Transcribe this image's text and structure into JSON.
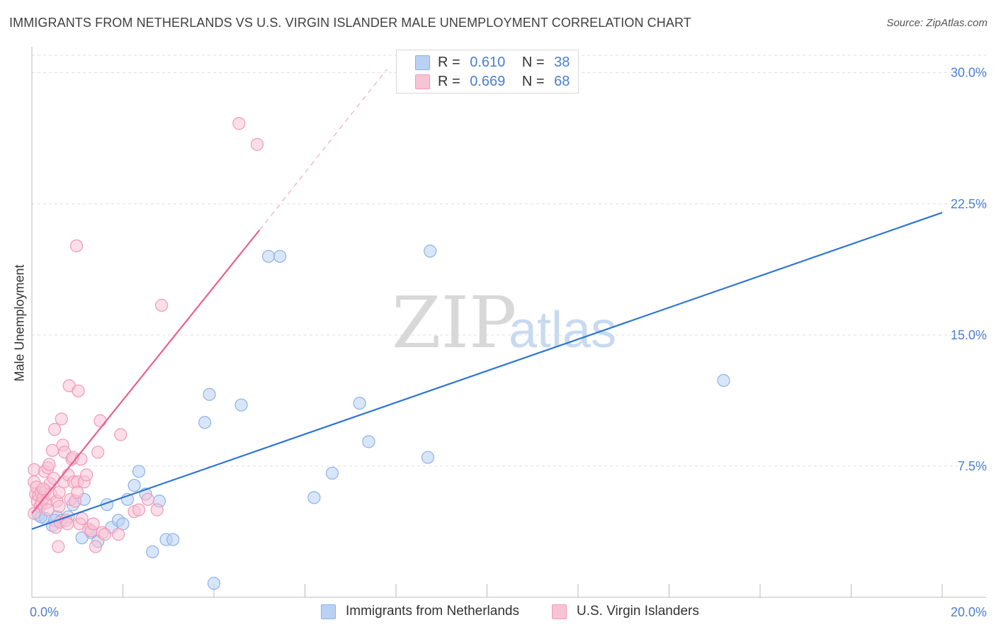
{
  "title": "IMMIGRANTS FROM NETHERLANDS VS U.S. VIRGIN ISLANDER MALE UNEMPLOYMENT CORRELATION CHART",
  "source": "Source: ZipAtlas.com",
  "watermark": {
    "zip": "ZIP",
    "atlas": "atlas"
  },
  "legend": {
    "r_label": "R =",
    "n_label": "N =",
    "series": [
      {
        "r": "0.610",
        "n": "38"
      },
      {
        "r": "0.669",
        "n": "68"
      }
    ]
  },
  "colors": {
    "blue_fill": "#b9d2f4",
    "blue_stroke": "#8bb2e6",
    "blue_line": "#2f75d3",
    "pink_fill": "#f8c3d5",
    "pink_stroke": "#f099b7",
    "pink_line": "#e8608f",
    "tick_text": "#4a7fd1",
    "grid": "#dddddd"
  },
  "chart_data": {
    "type": "scatter",
    "title": "IMMIGRANTS FROM NETHERLANDS VS U.S. VIRGIN ISLANDER MALE UNEMPLOYMENT CORRELATION CHART",
    "xlabel": "",
    "ylabel": "Male Unemployment",
    "xlim": [
      0,
      20
    ],
    "ylim": [
      0,
      31
    ],
    "x_tick_labels": [
      {
        "value": 0,
        "label": "0.0%"
      },
      {
        "value": 20,
        "label": "20.0%"
      }
    ],
    "y_tick_labels": [
      {
        "value": 7.5,
        "label": "7.5%"
      },
      {
        "value": 15,
        "label": "15.0%"
      },
      {
        "value": 22.5,
        "label": "22.5%"
      },
      {
        "value": 30,
        "label": "30.0%"
      }
    ],
    "series": [
      {
        "name": "Immigrants from Netherlands",
        "color": "blue",
        "points": [
          [
            0.15,
            4.7
          ],
          [
            0.3,
            4.5
          ],
          [
            0.45,
            4.1
          ],
          [
            0.55,
            4.6
          ],
          [
            0.65,
            4.4
          ],
          [
            0.9,
            5.3
          ],
          [
            1.15,
            5.6
          ],
          [
            1.3,
            3.7
          ],
          [
            1.1,
            3.4
          ],
          [
            1.45,
            3.2
          ],
          [
            1.65,
            5.3
          ],
          [
            1.75,
            4.0
          ],
          [
            1.9,
            4.4
          ],
          [
            2.0,
            4.2
          ],
          [
            2.1,
            5.6
          ],
          [
            2.25,
            6.4
          ],
          [
            2.35,
            7.2
          ],
          [
            2.5,
            5.9
          ],
          [
            2.65,
            2.6
          ],
          [
            2.8,
            5.5
          ],
          [
            2.95,
            3.3
          ],
          [
            3.1,
            3.3
          ],
          [
            3.8,
            10.0
          ],
          [
            3.9,
            11.6
          ],
          [
            4.0,
            0.8
          ],
          [
            4.6,
            11.0
          ],
          [
            5.2,
            19.5
          ],
          [
            5.45,
            19.5
          ],
          [
            6.2,
            5.7
          ],
          [
            6.6,
            7.1
          ],
          [
            7.2,
            11.1
          ],
          [
            7.4,
            8.9
          ],
          [
            8.7,
            8.0
          ],
          [
            8.75,
            19.8
          ],
          [
            15.2,
            12.4
          ],
          [
            0.2,
            4.6
          ],
          [
            0.5,
            4.4
          ],
          [
            0.8,
            4.6
          ]
        ],
        "trend": {
          "x": [
            0,
            20
          ],
          "y": [
            3.9,
            22.0
          ]
        }
      },
      {
        "name": "U.S. Virgin Islanders",
        "color": "pink",
        "points": [
          [
            0.05,
            7.3
          ],
          [
            0.05,
            6.6
          ],
          [
            0.08,
            5.9
          ],
          [
            0.1,
            6.3
          ],
          [
            0.12,
            5.5
          ],
          [
            0.15,
            5.8
          ],
          [
            0.18,
            5.2
          ],
          [
            0.2,
            6.0
          ],
          [
            0.22,
            5.4
          ],
          [
            0.25,
            5.7
          ],
          [
            0.28,
            7.2
          ],
          [
            0.3,
            6.1
          ],
          [
            0.32,
            5.4
          ],
          [
            0.35,
            7.4
          ],
          [
            0.38,
            7.6
          ],
          [
            0.4,
            6.5
          ],
          [
            0.42,
            5.9
          ],
          [
            0.45,
            8.4
          ],
          [
            0.48,
            6.8
          ],
          [
            0.5,
            9.6
          ],
          [
            0.52,
            4.0
          ],
          [
            0.55,
            5.5
          ],
          [
            0.58,
            2.9
          ],
          [
            0.6,
            6.0
          ],
          [
            0.62,
            4.3
          ],
          [
            0.65,
            10.2
          ],
          [
            0.68,
            8.7
          ],
          [
            0.7,
            6.6
          ],
          [
            0.72,
            8.3
          ],
          [
            0.75,
            4.4
          ],
          [
            0.78,
            4.2
          ],
          [
            0.8,
            7.0
          ],
          [
            0.82,
            12.1
          ],
          [
            0.85,
            5.6
          ],
          [
            0.88,
            7.9
          ],
          [
            0.9,
            8.0
          ],
          [
            0.92,
            6.6
          ],
          [
            0.95,
            5.5
          ],
          [
            0.98,
            20.1
          ],
          [
            1.0,
            6.6
          ],
          [
            1.02,
            11.8
          ],
          [
            1.05,
            4.2
          ],
          [
            1.08,
            7.9
          ],
          [
            1.1,
            4.5
          ],
          [
            1.15,
            6.6
          ],
          [
            1.2,
            7.0
          ],
          [
            1.25,
            3.9
          ],
          [
            1.3,
            3.8
          ],
          [
            1.35,
            4.2
          ],
          [
            1.4,
            2.9
          ],
          [
            1.45,
            8.3
          ],
          [
            1.5,
            10.1
          ],
          [
            1.55,
            3.7
          ],
          [
            1.6,
            3.6
          ],
          [
            1.9,
            3.6
          ],
          [
            1.95,
            9.3
          ],
          [
            2.25,
            4.9
          ],
          [
            2.35,
            5.0
          ],
          [
            2.55,
            5.6
          ],
          [
            2.75,
            5.0
          ],
          [
            2.85,
            16.7
          ],
          [
            4.55,
            27.1
          ],
          [
            4.95,
            25.9
          ],
          [
            0.05,
            4.8
          ],
          [
            0.25,
            6.2
          ],
          [
            0.35,
            5.0
          ],
          [
            0.6,
            5.2
          ],
          [
            1.0,
            6.0
          ]
        ],
        "trend": {
          "x": [
            0,
            5.0
          ],
          "y": [
            4.8,
            21.0
          ]
        },
        "trend_extension": {
          "x": [
            5.0,
            7.8
          ],
          "y": [
            21.0,
            30.2
          ]
        }
      }
    ]
  }
}
